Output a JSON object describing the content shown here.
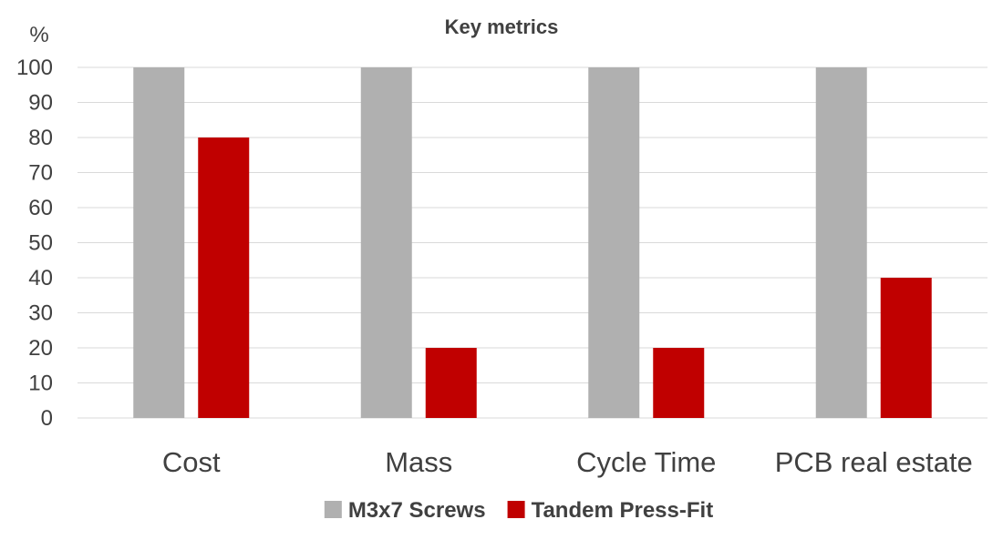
{
  "chart_data": {
    "type": "bar",
    "title": "Key metrics",
    "ylabel": "%",
    "xlabel": "",
    "ylim": [
      0,
      100
    ],
    "yticks": [
      0,
      10,
      20,
      30,
      40,
      50,
      60,
      70,
      80,
      90,
      100
    ],
    "grid": true,
    "legend_position": "bottom",
    "categories": [
      "Cost",
      "Mass",
      "Cycle Time",
      "PCB real estate"
    ],
    "series": [
      {
        "name": "M3x7 Screws",
        "color": "#b0b0b0",
        "values": [
          100,
          100,
          100,
          100
        ]
      },
      {
        "name": "Tandem Press-Fit",
        "color": "#c00000",
        "values": [
          80,
          20,
          20,
          40
        ]
      }
    ]
  }
}
